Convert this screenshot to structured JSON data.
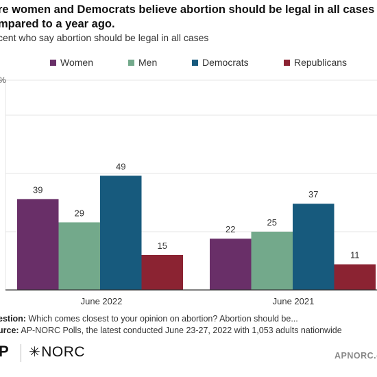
{
  "title_line1": "re women and Democrats believe abortion should be legal in all cases",
  "title_line2": "mpared to a year ago.",
  "subtitle": "cent who say abortion should be legal in all cases",
  "colors": {
    "women": "#692f68",
    "men": "#73a98b",
    "democrats": "#175a7d",
    "republicans": "#8b2332",
    "grid": "#e4e4e4",
    "axis": "#333333"
  },
  "chart_data": {
    "type": "bar",
    "categories": [
      "June 2022",
      "June 2021"
    ],
    "series": [
      {
        "name": "Women",
        "values": [
          39,
          22
        ],
        "color": "#692f68"
      },
      {
        "name": "Men",
        "values": [
          29,
          25
        ],
        "color": "#73a98b"
      },
      {
        "name": "Democrats",
        "values": [
          49,
          37
        ],
        "color": "#175a7d"
      },
      {
        "name": "Republicans",
        "values": [
          15,
          11
        ],
        "color": "#8b2332"
      }
    ],
    "ylim": [
      0,
      90
    ],
    "gridlines": [
      0,
      25,
      50,
      75,
      90
    ],
    "ytick_fragment": "%",
    "xlabel": "",
    "ylabel": "",
    "legend": "top",
    "grid": true
  },
  "footer": {
    "question_label": "estion:",
    "question_text": " Which comes closest to your opinion on abortion? Abortion should be...",
    "source_label": "urce:",
    "source_text": " AP-NORC Polls, the latest conducted June 23-27, 2022 with 1,053 adults nationwide"
  },
  "logos": {
    "ap": "P",
    "norc": "NORC",
    "norc_mark": "✳",
    "site": "APNORC.o"
  }
}
